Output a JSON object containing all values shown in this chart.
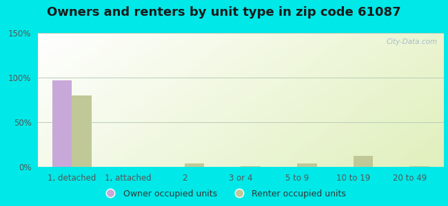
{
  "title": "Owners and renters by unit type in zip code 61087",
  "categories": [
    "1, detached",
    "1, attached",
    "2",
    "3 or 4",
    "5 to 9",
    "10 to 19",
    "20 to 49"
  ],
  "owner_values": [
    97,
    0,
    0,
    0,
    0,
    0,
    0
  ],
  "renter_values": [
    80,
    0,
    4,
    1,
    4,
    12,
    1
  ],
  "owner_color": "#c8a8d8",
  "renter_color": "#c0c898",
  "background_outer": "#00e8e8",
  "ylim": [
    0,
    150
  ],
  "yticks": [
    0,
    50,
    100,
    150
  ],
  "ytick_labels": [
    "0%",
    "50%",
    "100%",
    "150%"
  ],
  "bar_width": 0.35,
  "title_fontsize": 13,
  "tick_fontsize": 8.5,
  "legend_fontsize": 9,
  "watermark": "City-Data.com"
}
